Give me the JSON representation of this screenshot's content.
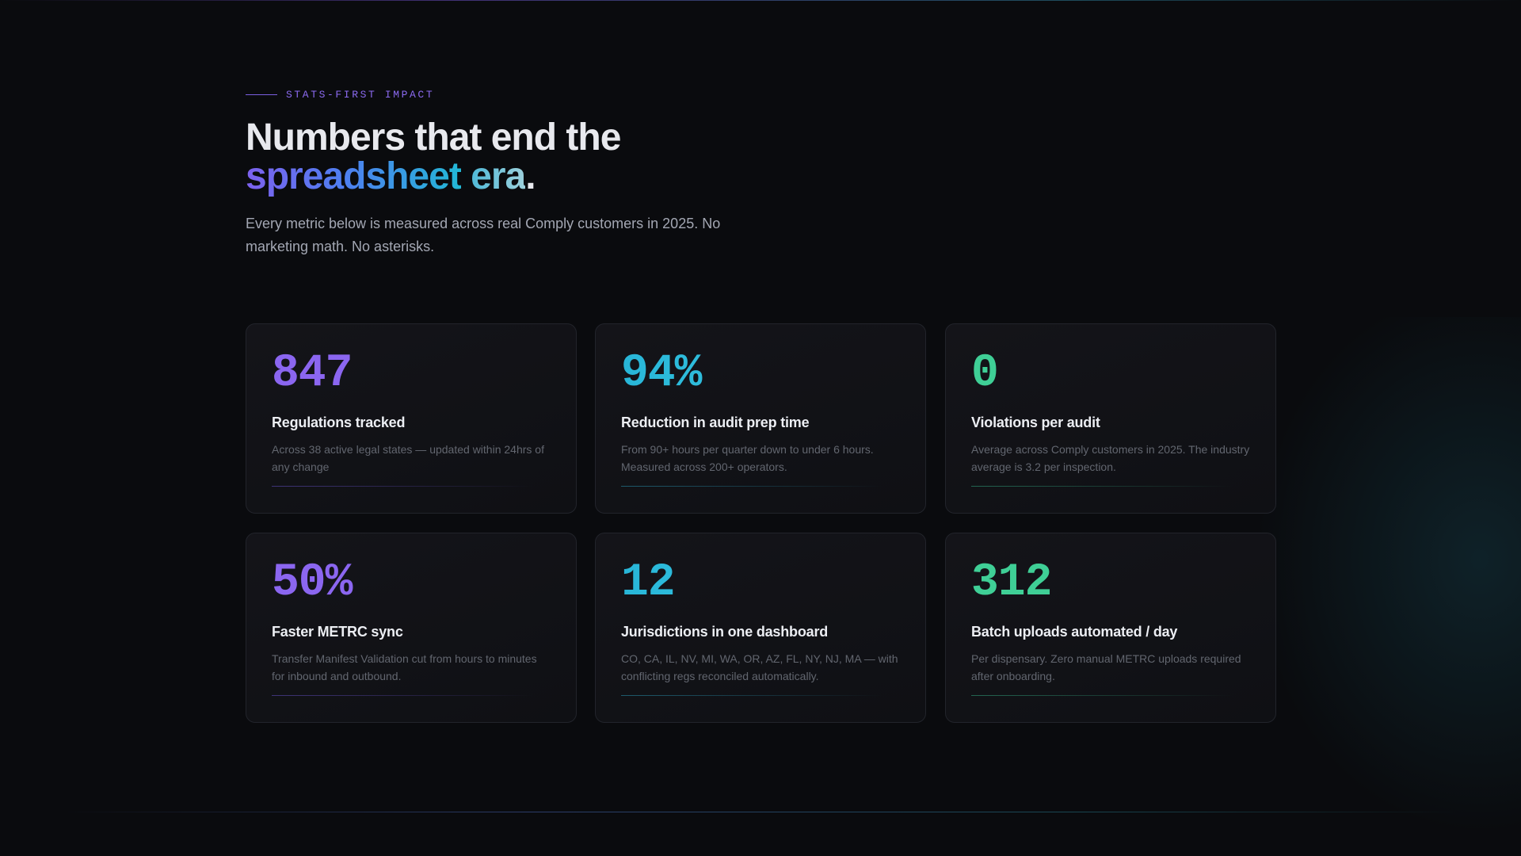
{
  "header": {
    "eyebrow": "STATS-FIRST IMPACT",
    "headline_line1": "Numbers that end the",
    "headline_word1": "spreadsheet",
    "headline_word2": "era",
    "headline_period": ".",
    "subtitle": "Every metric below is measured across real Comply customers in 2025. No marketing math. No asterisks."
  },
  "stats": [
    {
      "value": "847",
      "label": "Regulations tracked",
      "description": "Across 38 active legal states — updated within 24hrs of any change",
      "accent": "#8b66f0"
    },
    {
      "value": "94%",
      "label": "Reduction in audit prep time",
      "description": "From 90+ hours per quarter down to under 6 hours. Measured across 200+ operators.",
      "accent": "#28b6d8"
    },
    {
      "value": "0",
      "label": "Violations per audit",
      "description": "Average across Comply customers in 2025. The industry average is 3.2 per inspection.",
      "accent": "#3fcf96"
    },
    {
      "value": "50%",
      "label": "Faster METRC sync",
      "description": "Transfer Manifest Validation cut from hours to minutes for inbound and outbound.",
      "accent": "#8b66f0"
    },
    {
      "value": "12",
      "label": "Jurisdictions in one dashboard",
      "description": "CO, CA, IL, NV, MI, WA, OR, AZ, FL, NY, NJ, MA — with conflicting regs reconciled automatically.",
      "accent": "#28b6d8"
    },
    {
      "value": "312",
      "label": "Batch uploads automated / day",
      "description": "Per dispensary. Zero manual METRC uploads required after onboarding.",
      "accent": "#3fcf96"
    }
  ]
}
